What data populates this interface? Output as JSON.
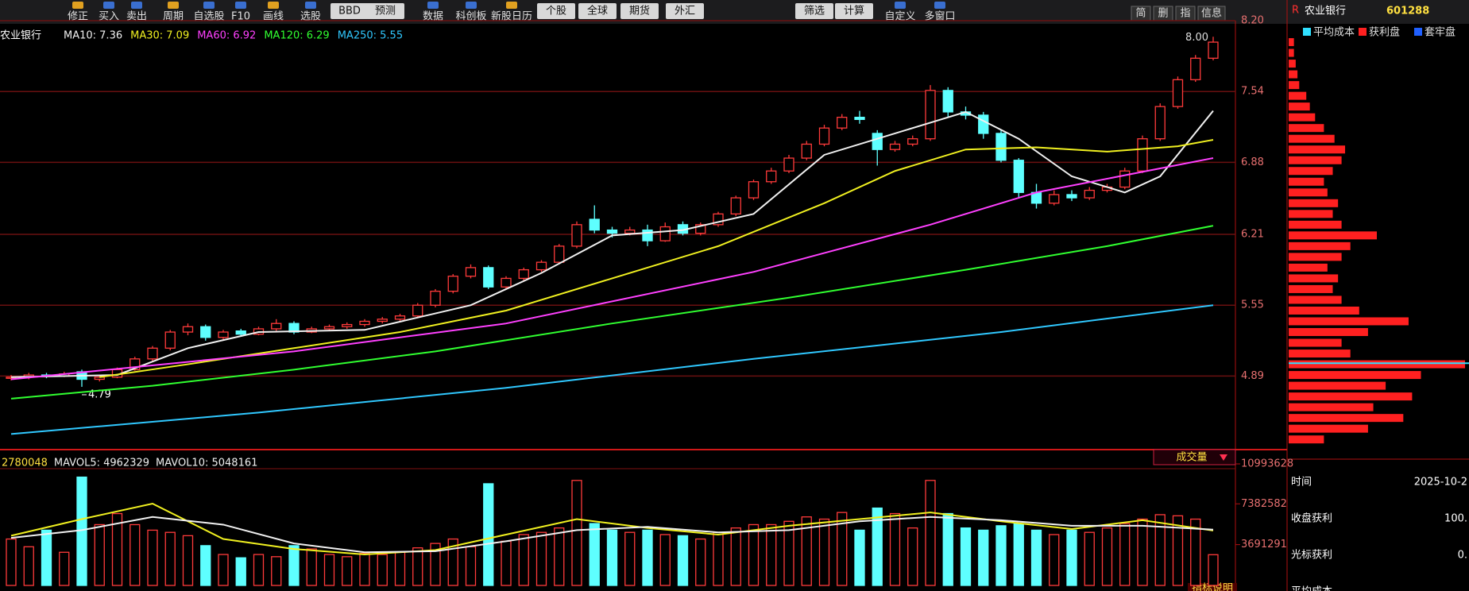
{
  "toolbar": {
    "items": [
      "修正",
      "买入",
      "卖出",
      "周期",
      "自选股",
      "F10",
      "画线",
      "选股",
      "BBD",
      "预测",
      "数据",
      "科创板",
      "新股日历",
      "个股",
      "全球",
      "期货",
      "外汇",
      "筛选",
      "计算",
      "自定义",
      "多窗口"
    ],
    "right_buttons": [
      "简",
      "删",
      "指",
      "信息"
    ]
  },
  "stock": {
    "marker": "R",
    "name": "农业银行",
    "code": "601288"
  },
  "chart_data": [
    {
      "type": "candlestick",
      "title": "农业银行",
      "up_color": "#ff3a3a",
      "down_color": "#5effff",
      "ohlc": [
        [
          4.87,
          4.9,
          4.85,
          4.88
        ],
        [
          4.88,
          4.92,
          4.86,
          4.9
        ],
        [
          4.9,
          4.92,
          4.87,
          4.89
        ],
        [
          4.89,
          4.93,
          4.88,
          4.91
        ],
        [
          4.93,
          4.95,
          4.79,
          4.86
        ],
        [
          4.86,
          4.9,
          4.84,
          4.88
        ],
        [
          4.88,
          4.97,
          4.87,
          4.95
        ],
        [
          4.95,
          5.07,
          4.94,
          5.05
        ],
        [
          5.05,
          5.17,
          5.03,
          5.15
        ],
        [
          5.15,
          5.32,
          5.13,
          5.3
        ],
        [
          5.3,
          5.38,
          5.27,
          5.35
        ],
        [
          5.35,
          5.37,
          5.22,
          5.25
        ],
        [
          5.25,
          5.32,
          5.23,
          5.3
        ],
        [
          5.31,
          5.33,
          5.26,
          5.28
        ],
        [
          5.28,
          5.35,
          5.27,
          5.33
        ],
        [
          5.33,
          5.42,
          5.31,
          5.38
        ],
        [
          5.38,
          5.4,
          5.28,
          5.3
        ],
        [
          5.3,
          5.35,
          5.29,
          5.33
        ],
        [
          5.33,
          5.37,
          5.31,
          5.35
        ],
        [
          5.35,
          5.39,
          5.33,
          5.37
        ],
        [
          5.37,
          5.42,
          5.35,
          5.4
        ],
        [
          5.4,
          5.44,
          5.38,
          5.42
        ],
        [
          5.42,
          5.47,
          5.4,
          5.45
        ],
        [
          5.45,
          5.57,
          5.44,
          5.55
        ],
        [
          5.55,
          5.7,
          5.53,
          5.68
        ],
        [
          5.68,
          5.84,
          5.66,
          5.82
        ],
        [
          5.82,
          5.93,
          5.8,
          5.9
        ],
        [
          5.9,
          5.92,
          5.7,
          5.72
        ],
        [
          5.72,
          5.82,
          5.7,
          5.8
        ],
        [
          5.8,
          5.9,
          5.78,
          5.88
        ],
        [
          5.88,
          5.97,
          5.86,
          5.95
        ],
        [
          5.95,
          6.12,
          5.94,
          6.1
        ],
        [
          6.1,
          6.33,
          6.08,
          6.3
        ],
        [
          6.35,
          6.48,
          6.22,
          6.25
        ],
        [
          6.25,
          6.28,
          6.18,
          6.22
        ],
        [
          6.22,
          6.28,
          6.2,
          6.25
        ],
        [
          6.25,
          6.3,
          6.1,
          6.15
        ],
        [
          6.15,
          6.32,
          6.14,
          6.28
        ],
        [
          6.3,
          6.33,
          6.2,
          6.22
        ],
        [
          6.22,
          6.32,
          6.2,
          6.3
        ],
        [
          6.3,
          6.42,
          6.28,
          6.4
        ],
        [
          6.4,
          6.57,
          6.38,
          6.55
        ],
        [
          6.55,
          6.72,
          6.53,
          6.7
        ],
        [
          6.7,
          6.83,
          6.68,
          6.8
        ],
        [
          6.8,
          6.95,
          6.78,
          6.92
        ],
        [
          6.92,
          7.08,
          6.9,
          7.05
        ],
        [
          7.05,
          7.23,
          7.03,
          7.2
        ],
        [
          7.2,
          7.33,
          7.18,
          7.3
        ],
        [
          7.3,
          7.36,
          7.24,
          7.28
        ],
        [
          7.15,
          7.18,
          6.85,
          7.0
        ],
        [
          7.0,
          7.08,
          6.98,
          7.05
        ],
        [
          7.05,
          7.13,
          7.03,
          7.1
        ],
        [
          7.1,
          7.6,
          7.08,
          7.55
        ],
        [
          7.55,
          7.58,
          7.3,
          7.35
        ],
        [
          7.35,
          7.4,
          7.28,
          7.32
        ],
        [
          7.32,
          7.35,
          7.1,
          7.15
        ],
        [
          7.15,
          7.18,
          6.88,
          6.9
        ],
        [
          6.9,
          6.92,
          6.55,
          6.6
        ],
        [
          6.6,
          6.68,
          6.45,
          6.5
        ],
        [
          6.5,
          6.62,
          6.48,
          6.58
        ],
        [
          6.58,
          6.62,
          6.52,
          6.55
        ],
        [
          6.55,
          6.65,
          6.53,
          6.62
        ],
        [
          6.62,
          6.68,
          6.6,
          6.65
        ],
        [
          6.65,
          6.83,
          6.63,
          6.8
        ],
        [
          6.8,
          7.13,
          6.78,
          7.1
        ],
        [
          7.1,
          7.43,
          7.08,
          7.4
        ],
        [
          7.4,
          7.68,
          7.38,
          7.65
        ],
        [
          7.65,
          7.88,
          7.63,
          7.85
        ],
        [
          7.85,
          8.05,
          7.83,
          8.0
        ]
      ],
      "series": [
        {
          "name": "MA10: 7.36",
          "color": "#f0f0f0",
          "x": [
            0,
            6,
            10,
            14,
            20,
            26,
            30,
            34,
            38,
            42,
            46,
            50,
            54,
            57,
            60,
            63,
            65,
            68
          ],
          "values": [
            4.88,
            4.9,
            5.15,
            5.3,
            5.32,
            5.55,
            5.85,
            6.2,
            6.25,
            6.4,
            6.95,
            7.15,
            7.35,
            7.1,
            6.75,
            6.6,
            6.75,
            7.36
          ]
        },
        {
          "name": "MA30: 7.09",
          "color": "#f0f020",
          "x": [
            5,
            10,
            16,
            22,
            28,
            34,
            40,
            46,
            50,
            54,
            58,
            62,
            66,
            68
          ],
          "values": [
            4.88,
            5.0,
            5.15,
            5.3,
            5.5,
            5.8,
            6.1,
            6.5,
            6.8,
            7.0,
            7.02,
            6.98,
            7.03,
            7.09
          ]
        },
        {
          "name": "MA60: 6.92",
          "color": "#ff40ff",
          "x": [
            0,
            16,
            28,
            42,
            52,
            58,
            68
          ],
          "values": [
            4.86,
            5.12,
            5.38,
            5.86,
            6.3,
            6.6,
            6.92
          ]
        },
        {
          "name": "MA120: 6.29",
          "color": "#30ff30",
          "x": [
            0,
            8,
            16,
            24,
            34,
            44,
            54,
            62,
            68
          ],
          "values": [
            4.68,
            4.8,
            4.95,
            5.12,
            5.38,
            5.62,
            5.88,
            6.1,
            6.29
          ]
        },
        {
          "name": "MA250: 5.55",
          "color": "#30c8ff",
          "x": [
            0,
            14,
            28,
            42,
            56,
            68
          ],
          "values": [
            4.35,
            4.55,
            4.78,
            5.05,
            5.3,
            5.55
          ]
        }
      ],
      "ylim": [
        4.22,
        8.2
      ],
      "yticks": [
        {
          "value": 8.2,
          "label": "8.20"
        },
        7.54,
        6.88,
        6.21,
        5.55,
        4.89
      ],
      "grid": true,
      "low_label": "4.79",
      "high_label": "8.00"
    },
    {
      "type": "bar",
      "title": "成交量",
      "current_label": "2780048",
      "values": [
        4200000,
        3500000,
        5000000,
        3000000,
        9800000,
        5500000,
        6500000,
        5500000,
        5000000,
        4800000,
        4500000,
        3600000,
        2800000,
        2500000,
        2800000,
        2600000,
        3600000,
        3300000,
        2800000,
        2600000,
        2900000,
        2800000,
        3000000,
        3400000,
        3800000,
        4200000,
        3500000,
        9200000,
        4000000,
        4600000,
        4800000,
        5200000,
        9500000,
        5600000,
        5000000,
        4800000,
        5000000,
        4600000,
        4500000,
        4200000,
        4800000,
        5200000,
        5500000,
        5500000,
        5800000,
        6200000,
        6000000,
        6600000,
        5000000,
        7000000,
        6500000,
        5200000,
        9500000,
        6500000,
        5200000,
        5000000,
        5400000,
        5600000,
        5000000,
        4600000,
        5000000,
        4800000,
        5200000,
        5600000,
        6000000,
        6400000,
        6300000,
        6000000,
        2780048
      ],
      "series": [
        {
          "name": "MAVOL5: 4962329",
          "color": "#f0f020",
          "x": [
            0,
            4,
            8,
            12,
            16,
            20,
            24,
            28,
            32,
            36,
            40,
            44,
            48,
            52,
            56,
            60,
            64,
            68
          ],
          "values": [
            4500000,
            6000000,
            7400000,
            4200000,
            3300000,
            2800000,
            3200000,
            4600000,
            6000000,
            5200000,
            4600000,
            5400000,
            6000000,
            6600000,
            5800000,
            5100000,
            5900000,
            4962329
          ]
        },
        {
          "name": "MAVOL10: 5048161",
          "color": "#f0f0f0",
          "x": [
            0,
            4,
            8,
            12,
            16,
            20,
            24,
            28,
            32,
            36,
            40,
            44,
            48,
            52,
            56,
            60,
            64,
            68
          ],
          "values": [
            4300000,
            5000000,
            6200000,
            5500000,
            3800000,
            3000000,
            3100000,
            4000000,
            5000000,
            5300000,
            4800000,
            5000000,
            5800000,
            6200000,
            5900000,
            5400000,
            5400000,
            5048161
          ]
        }
      ],
      "ylim": [
        0,
        10993628
      ],
      "yticks": [
        10993628,
        7382582,
        3691291
      ]
    },
    {
      "type": "hbar",
      "legend": [
        {
          "name": "平均成本",
          "color": "#30e0ff"
        },
        {
          "name": "获利盘",
          "color": "#ff2020"
        },
        {
          "name": "套牢盘",
          "color": "#2060ff"
        }
      ],
      "prices": [
        4.3,
        4.4,
        4.5,
        4.6,
        4.7,
        4.8,
        4.9,
        5.0,
        5.1,
        5.2,
        5.3,
        5.4,
        5.5,
        5.6,
        5.7,
        5.8,
        5.9,
        6.0,
        6.1,
        6.2,
        6.3,
        6.4,
        6.5,
        6.6,
        6.7,
        6.8,
        6.9,
        7.0,
        7.1,
        7.2,
        7.3,
        7.4,
        7.5,
        7.6,
        7.7,
        7.8,
        7.9,
        8.0,
        8.1
      ],
      "values": [
        20,
        45,
        65,
        48,
        70,
        55,
        75,
        100,
        35,
        30,
        45,
        68,
        40,
        30,
        25,
        28,
        22,
        30,
        35,
        50,
        30,
        25,
        28,
        22,
        20,
        25,
        30,
        32,
        26,
        20,
        15,
        12,
        10,
        6,
        5,
        4,
        3,
        3,
        2
      ],
      "xlim": [
        0,
        100
      ],
      "ylim": [
        4.22,
        8.2
      ],
      "avg_cost": 5.01
    }
  ],
  "info": {
    "rows": [
      {
        "label": "时间",
        "value": "2025-10-2"
      },
      {
        "label": "收盘获利",
        "value": "100."
      },
      {
        "label": "光标获利",
        "value": "0."
      },
      {
        "label": "平均成本"
      }
    ],
    "footer": "指标说明"
  }
}
